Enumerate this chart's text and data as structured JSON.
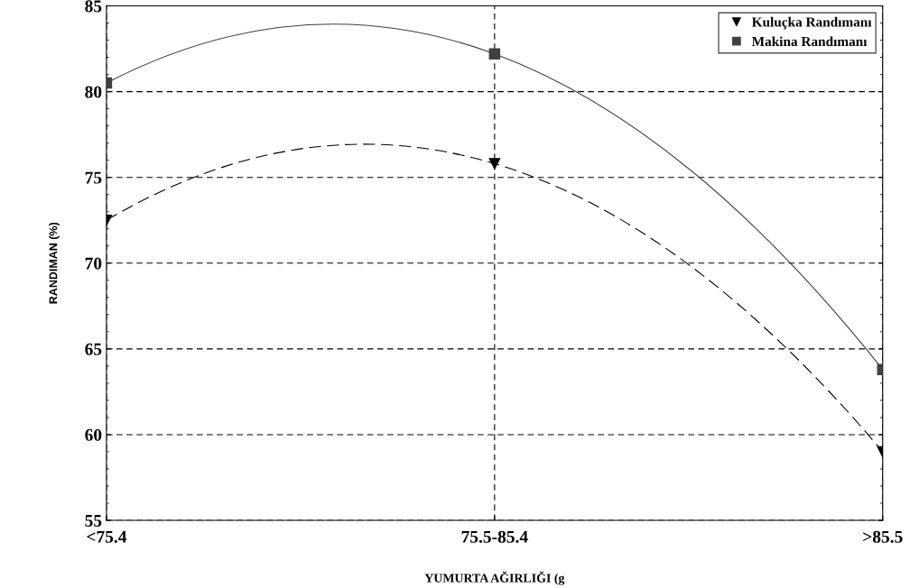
{
  "chart_data": {
    "type": "line",
    "xlabel": "YUMURTA AĞIRLIĞI (g",
    "ylabel": "RANDIMAN (%)",
    "categories": [
      "<75.4",
      "75.5-85.4",
      ">85.5"
    ],
    "series": [
      {
        "name": "Kuluçka Randımanı",
        "color": "#000000",
        "values": [
          72.5,
          75.8,
          59.0
        ],
        "marker": "triangle",
        "line_style": "dashed"
      },
      {
        "name": "Makina Randımanı",
        "color": "#404040",
        "values": [
          80.5,
          82.2,
          63.8
        ],
        "marker": "square",
        "line_style": "solid"
      }
    ],
    "ylim": [
      55,
      85
    ],
    "yticks": [
      55,
      60,
      65,
      70,
      75,
      80,
      85
    ],
    "grid": true,
    "legend": "top right"
  }
}
